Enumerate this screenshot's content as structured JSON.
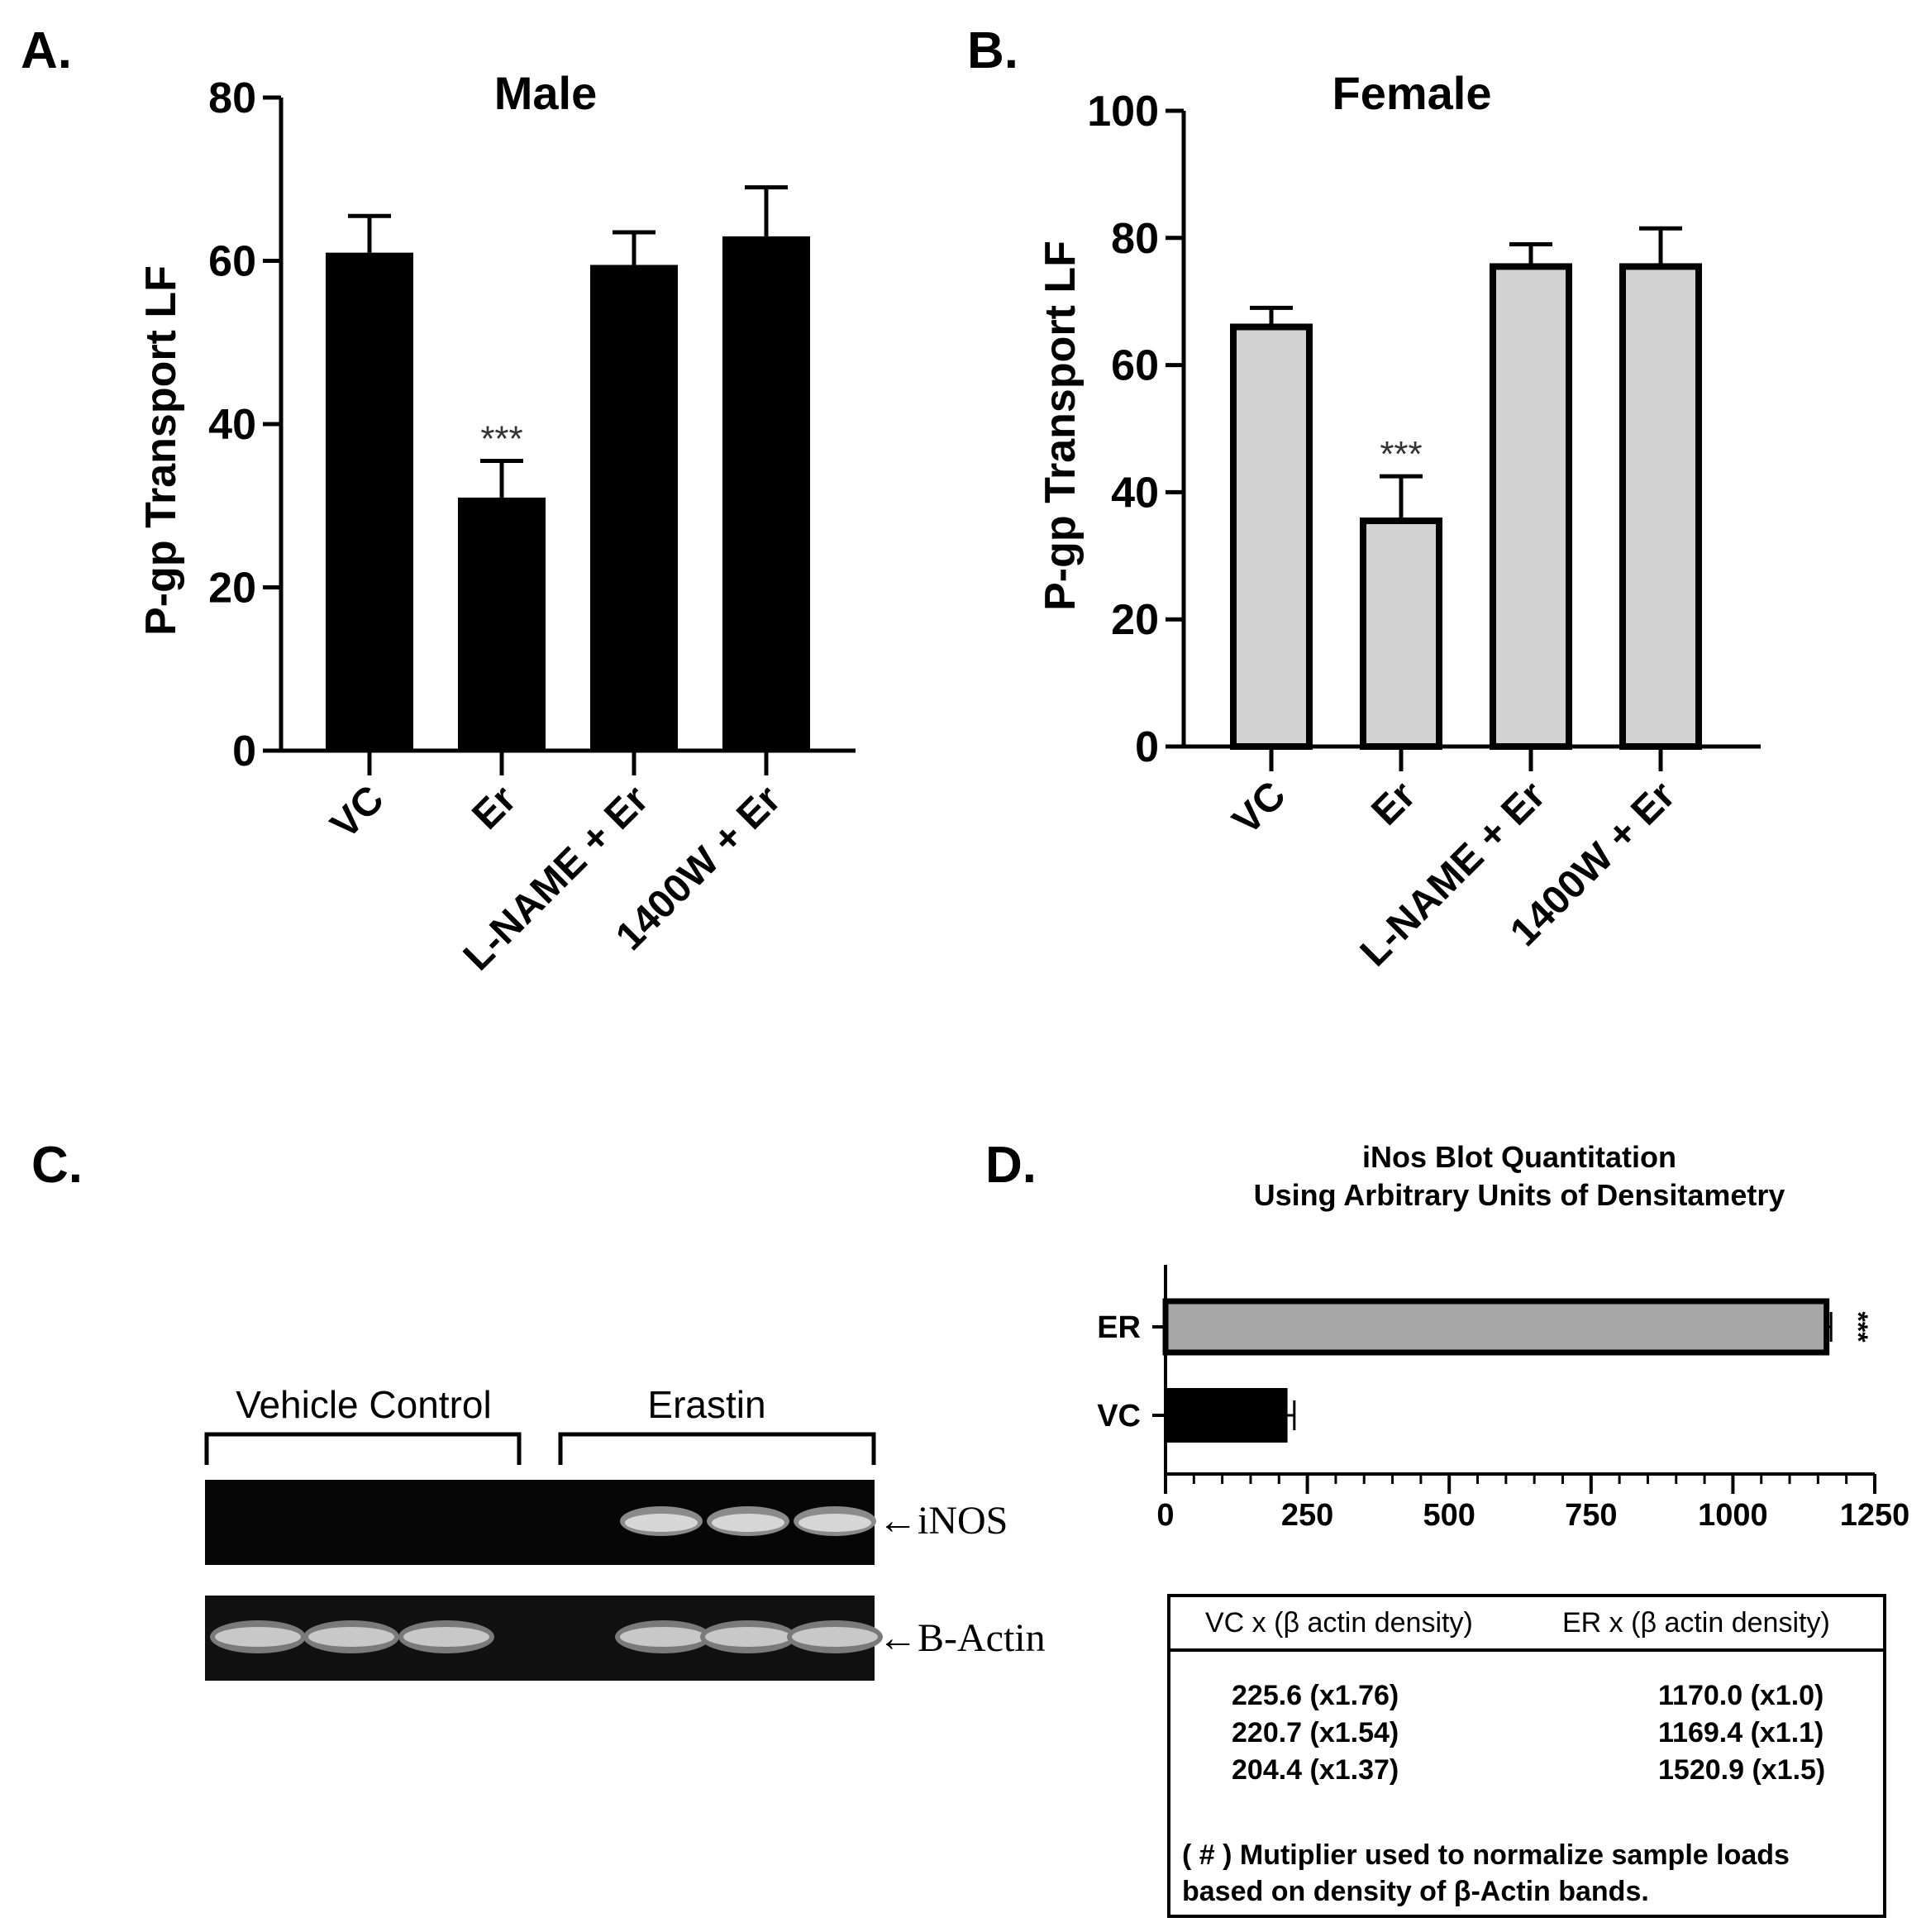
{
  "panels": {
    "A": {
      "letter": "A."
    },
    "B": {
      "letter": "B."
    },
    "C": {
      "letter": "C."
    },
    "D": {
      "letter": "D."
    }
  },
  "chart_data": [
    {
      "panel": "A",
      "type": "bar",
      "title": "Male",
      "ylabel": "P-gp Transport  LF",
      "xlabel": "",
      "categories": [
        "VC",
        "Er",
        "L-NAME + Er",
        "1400W + Er"
      ],
      "values": [
        61,
        31,
        59.5,
        63
      ],
      "errors": [
        4.5,
        4.5,
        4,
        6
      ],
      "significance": [
        "",
        "***",
        "",
        ""
      ],
      "yticks": [
        0,
        20,
        40,
        60,
        80
      ],
      "ylim": [
        0,
        80
      ],
      "bar_fill": "#000000"
    },
    {
      "panel": "B",
      "type": "bar",
      "title": "Female",
      "ylabel": "P-gp Transport  LF",
      "xlabel": "",
      "categories": [
        "VC",
        "Er",
        "L-NAME + Er",
        "1400W + Er"
      ],
      "values": [
        66,
        35.5,
        75.5,
        75.5
      ],
      "errors": [
        3,
        7,
        3.5,
        6
      ],
      "significance": [
        "",
        "***",
        "",
        ""
      ],
      "yticks": [
        0,
        20,
        40,
        60,
        80,
        100
      ],
      "ylim": [
        0,
        100
      ],
      "bar_fill": "#d3d3d3"
    },
    {
      "panel": "D",
      "type": "bar",
      "orientation": "horizontal",
      "title": "iNos Blot Quantitation",
      "subtitle": "Using Arbitrary Units of Densitametry",
      "categories": [
        "ER",
        "VC"
      ],
      "values": [
        1165,
        215
      ],
      "errors": [
        8,
        12
      ],
      "significance": [
        "***",
        ""
      ],
      "xticks": [
        0,
        250,
        500,
        750,
        1000,
        1250
      ],
      "xlim": [
        0,
        1250
      ],
      "bar_fills": [
        "#a6a6a6",
        "#000000"
      ]
    }
  ],
  "blot": {
    "group_labels": [
      "Vehicle Control",
      "Erastin"
    ],
    "band_labels": [
      "iNOS",
      "Β-Actin"
    ],
    "arrow": "←"
  },
  "table": {
    "headers": [
      "VC x (β actin density)",
      "ER x (β actin density)"
    ],
    "rows": [
      [
        "225.6 (x1.76)",
        "1170.0 (x1.0)"
      ],
      [
        "220.7 (x1.54)",
        "1169.4 (x1.1)"
      ],
      [
        "204.4 (x1.37)",
        "1520.9 (x1.5)"
      ]
    ],
    "note": "( # ) Mutiplier used to normalize sample loads based on density of β-Actin bands."
  }
}
